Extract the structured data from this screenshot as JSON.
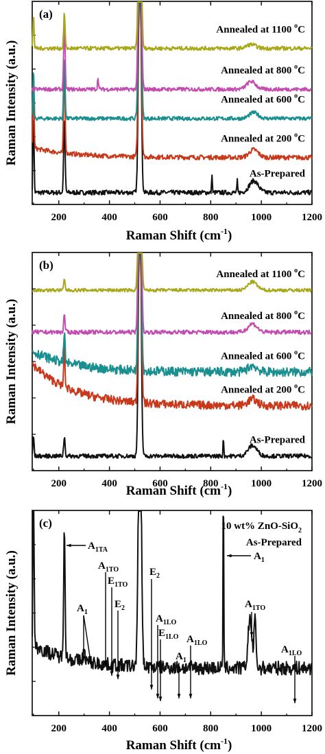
{
  "chart_data": [
    {
      "panel": "(a)",
      "type": "line",
      "xlabel": "Raman Shift",
      "xunit": "(cm",
      "xunit_exp": "-1",
      "xunit_close": ")",
      "ylabel": "Raman Intensity  (a.u.)",
      "xlim": [
        95,
        1200
      ],
      "xticks": [
        200,
        400,
        600,
        800,
        1000,
        1200
      ],
      "series": [
        {
          "name": "As-Prepared",
          "label_prefix": "As-Prepared",
          "label_temp": "",
          "color": "#111111",
          "base": 0.04,
          "noise": 0.012,
          "drift": 0.0,
          "peaks": [
            [
              100,
              0.42,
              3
            ],
            [
              222,
              0.38,
              4
            ],
            [
              520,
              1.4,
              7
            ],
            [
              805,
              0.1,
              2
            ],
            [
              905,
              0.06,
              2
            ],
            [
              970,
              0.06,
              25
            ]
          ]
        },
        {
          "name": "Annealed at 200 °C",
          "label_prefix": "Annealed at 200 ",
          "label_temp": "C",
          "color": "#c8391b",
          "base": 0.22,
          "noise": 0.012,
          "drift": 0.05,
          "peaks": [
            [
              100,
              0.4,
              3
            ],
            [
              222,
              0.45,
              4
            ],
            [
              520,
              1.4,
              7
            ],
            [
              970,
              0.04,
              25
            ]
          ]
        },
        {
          "name": "Annealed at 600 °C",
          "label_prefix": "Annealed at 600 ",
          "label_temp": "C",
          "color": "#1a8f8f",
          "base": 0.42,
          "noise": 0.01,
          "drift": 0.0,
          "peaks": [
            [
              100,
              0.25,
              3
            ],
            [
              222,
              0.32,
              4
            ],
            [
              520,
              1.4,
              7
            ],
            [
              970,
              0.03,
              25
            ]
          ]
        },
        {
          "name": "Annealed at 800 °C",
          "label_prefix": "Annealed at 800 ",
          "label_temp": "C",
          "color": "#c44bb0",
          "base": 0.57,
          "noise": 0.01,
          "drift": 0.0,
          "peaks": [
            [
              222,
              0.35,
              4
            ],
            [
              355,
              0.06,
              3
            ],
            [
              520,
              1.4,
              7
            ],
            [
              960,
              0.04,
              25
            ]
          ]
        },
        {
          "name": "Annealed at 1100 °C",
          "label_prefix": "Annealed at 1100 ",
          "label_temp": "C",
          "color": "#a8a81a",
          "base": 0.78,
          "noise": 0.01,
          "drift": 0.0,
          "peaks": [
            [
              100,
              0.18,
              3
            ],
            [
              222,
              0.18,
              4
            ],
            [
              520,
              1.4,
              7
            ],
            [
              960,
              0.02,
              25
            ]
          ]
        }
      ]
    },
    {
      "panel": "(b)",
      "type": "line",
      "xlabel": "Raman Shift",
      "xunit": "(cm",
      "xunit_exp": "-1",
      "xunit_close": ")",
      "ylabel": "Raman Intensity  (a.u.)",
      "xlim": [
        95,
        1200
      ],
      "xticks": [
        200,
        400,
        600,
        800,
        1000,
        1200
      ],
      "series": [
        {
          "name": "As-Prepared",
          "label_prefix": "As-Prepared",
          "label_temp": "",
          "color": "#111111",
          "base": 0.05,
          "noise": 0.01,
          "drift": 0.0,
          "peaks": [
            [
              100,
              0.1,
              3
            ],
            [
              222,
              0.09,
              4
            ],
            [
              520,
              1.4,
              7
            ],
            [
              850,
              0.1,
              2
            ],
            [
              965,
              0.05,
              25
            ]
          ]
        },
        {
          "name": "Annealed at 200 °C",
          "label_prefix": "Annealed at 200 ",
          "label_temp": "C",
          "color": "#c8391b",
          "base": 0.29,
          "noise": 0.02,
          "drift": 0.2,
          "peaks": [
            [
              222,
              0.25,
              3
            ],
            [
              520,
              1.4,
              7
            ],
            [
              965,
              0.03,
              25
            ]
          ]
        },
        {
          "name": "Annealed at 600 °C",
          "label_prefix": "Annealed at 600 ",
          "label_temp": "C",
          "color": "#1a8f8f",
          "base": 0.45,
          "noise": 0.022,
          "drift": 0.1,
          "peaks": [
            [
              222,
              0.14,
              4
            ],
            [
              520,
              1.4,
              7
            ],
            [
              965,
              0.03,
              25
            ]
          ]
        },
        {
          "name": "Annealed at 800 °C",
          "label_prefix": "Annealed at 800 ",
          "label_temp": "C",
          "color": "#c44bb0",
          "base": 0.64,
          "noise": 0.01,
          "drift": 0.0,
          "peaks": [
            [
              222,
              0.08,
              4
            ],
            [
              520,
              1.4,
              7
            ],
            [
              965,
              0.04,
              25
            ]
          ]
        },
        {
          "name": "Annealed at 1100 °C",
          "label_prefix": "Annealed at 1100 ",
          "label_temp": "C",
          "color": "#a8a81a",
          "base": 0.84,
          "noise": 0.008,
          "drift": 0.0,
          "peaks": [
            [
              222,
              0.05,
              4
            ],
            [
              520,
              1.4,
              7
            ],
            [
              965,
              0.04,
              25
            ]
          ]
        }
      ]
    },
    {
      "panel": "(c)",
      "type": "line",
      "xlabel": "Raman Shift",
      "xunit": "(cm",
      "xunit_exp": "-1",
      "xunit_close": ")",
      "ylabel": "Raman Intensity  (a.u.)",
      "xlim": [
        95,
        1200
      ],
      "xticks": [
        200,
        400,
        600,
        800,
        1000,
        1200
      ],
      "legend_line1": "10 wt% ZnO-SiO",
      "legend_line1_sub": "2",
      "legend_line2": "As-Prepared",
      "series": [
        {
          "name": "10 wt% ZnO-SiO2 As-Prepared",
          "color": "#111111",
          "base": 0.22,
          "noise": 0.035,
          "drift": 0.12,
          "peaks": [
            [
              100,
              1.0,
              3
            ],
            [
              222,
              0.68,
              4
            ],
            [
              300,
              0.04,
              8
            ],
            [
              520,
              1.5,
              8
            ],
            [
              850,
              0.95,
              2
            ],
            [
              955,
              0.26,
              10
            ],
            [
              975,
              0.24,
              6
            ]
          ]
        }
      ],
      "annotations": [
        {
          "label": "A",
          "sub": "1TA",
          "x": 222
        },
        {
          "label": "A",
          "sub": "1TO",
          "x": 380
        },
        {
          "label": "E",
          "sub": "1TO",
          "x": 410
        },
        {
          "label": "E",
          "sub": "2",
          "x": 425
        },
        {
          "label": "A",
          "sub": "1",
          "x": 300
        },
        {
          "label": "A",
          "sub": "1",
          "x": 355
        },
        {
          "label": "E",
          "sub": "2",
          "x": 570
        },
        {
          "label": "A",
          "sub": "1LO",
          "x": 580
        },
        {
          "label": "E",
          "sub": "1LO",
          "x": 590
        },
        {
          "label": "A",
          "sub": "1",
          "x": 665
        },
        {
          "label": "A",
          "sub": "1LO",
          "x": 725
        },
        {
          "label": "A",
          "sub": "1",
          "x": 850
        },
        {
          "label": "A",
          "sub": "1TO",
          "x": 965
        },
        {
          "label": "A",
          "sub": "1LO",
          "x": 1135
        }
      ]
    }
  ]
}
